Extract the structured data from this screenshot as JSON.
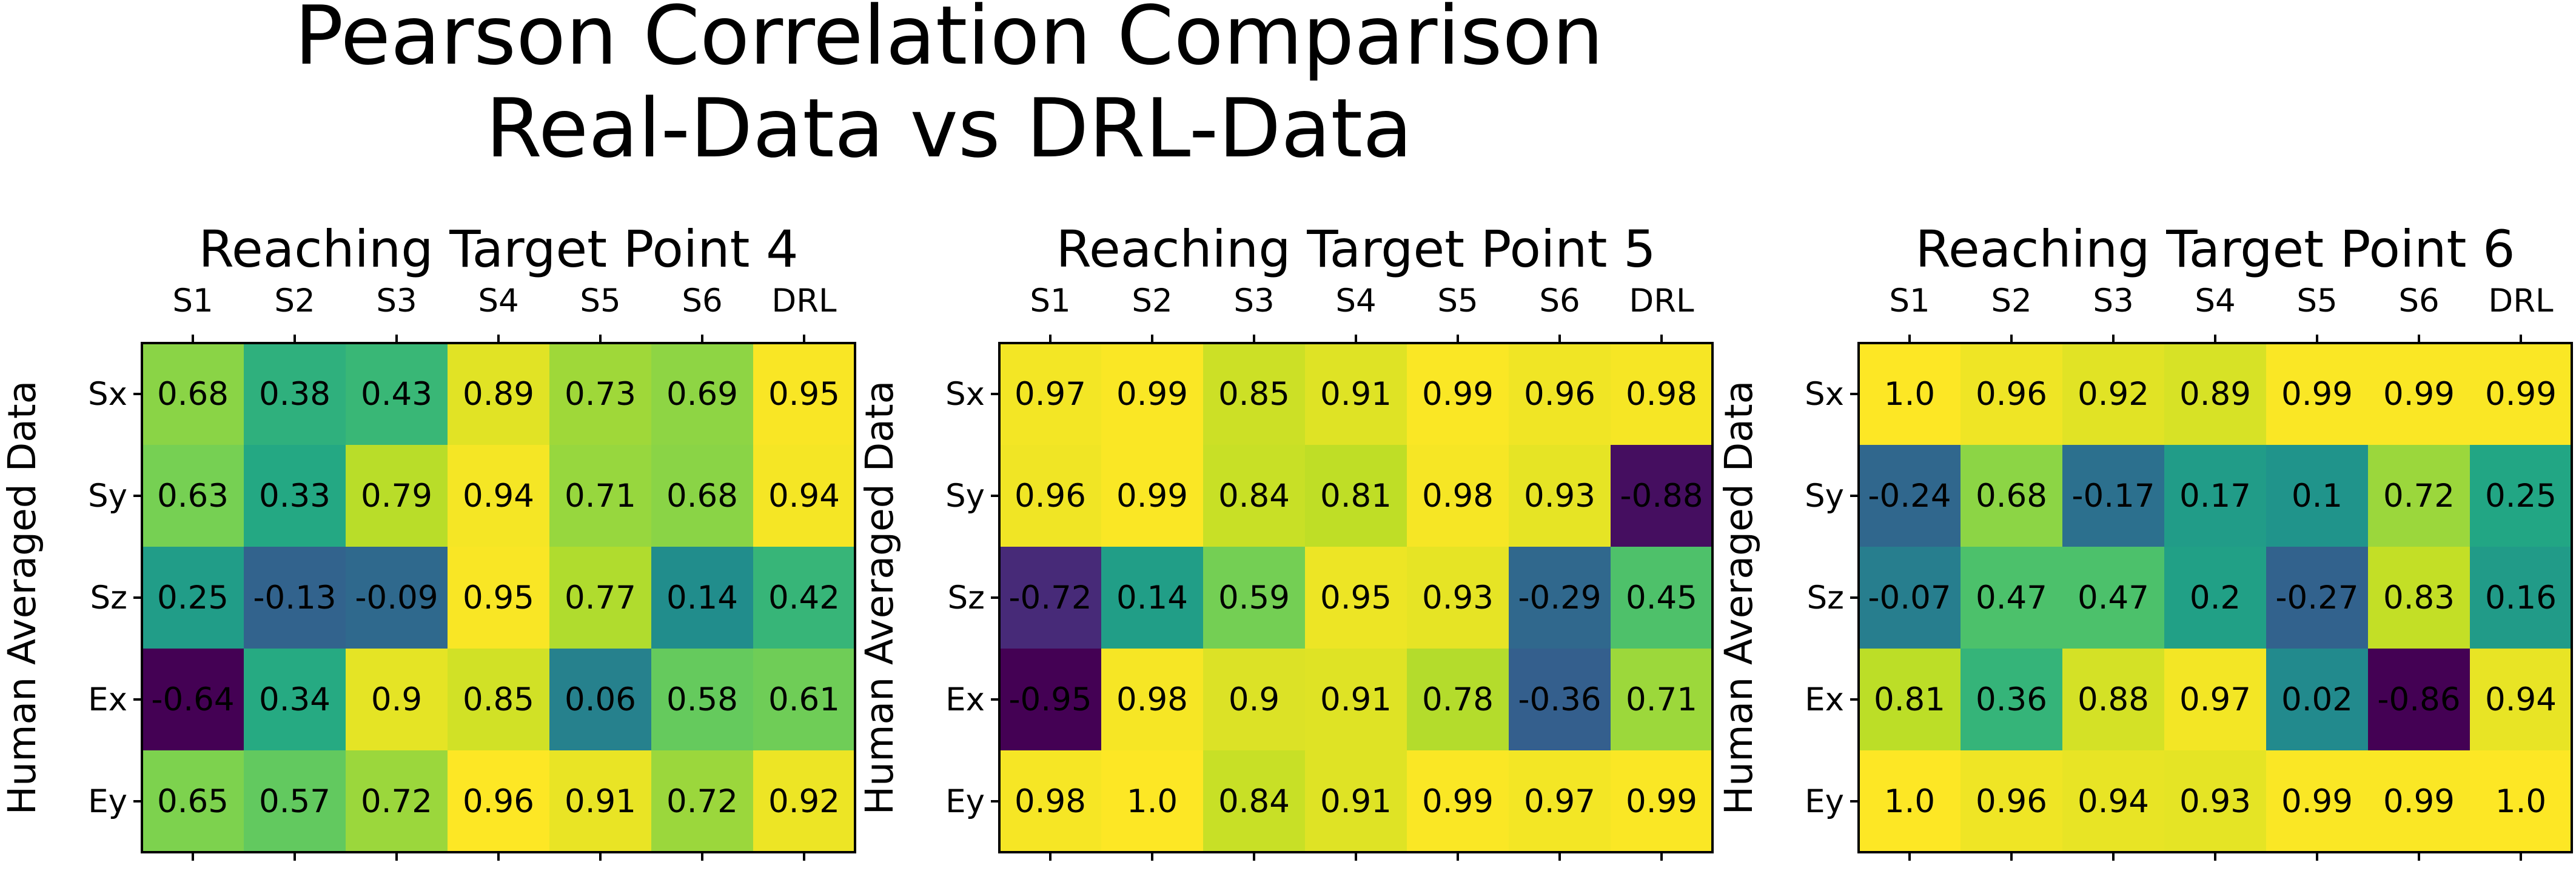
{
  "figure": {
    "title_line1": "Pearson Correlation Comparison",
    "title_line2": "Real-Data vs DRL-Data"
  },
  "chart_data": [
    {
      "type": "heatmap",
      "title": "Reaching Target Point 4",
      "xlabel": "",
      "ylabel": "Human Averaged Data",
      "columns": [
        "S1",
        "S2",
        "S3",
        "S4",
        "S5",
        "S6",
        "DRL"
      ],
      "rows": [
        "Sx",
        "Sy",
        "Sz",
        "Ex",
        "Ey"
      ],
      "values": [
        [
          "0.68",
          "0.38",
          "0.43",
          "0.89",
          "0.73",
          "0.69",
          "0.95"
        ],
        [
          "0.63",
          "0.33",
          "0.79",
          "0.94",
          "0.71",
          "0.68",
          "0.94"
        ],
        [
          "0.25",
          "-0.13",
          "-0.09",
          "0.95",
          "0.77",
          "0.14",
          "0.42"
        ],
        [
          "-0.64",
          "0.34",
          "0.9",
          "0.85",
          "0.06",
          "0.58",
          "0.61"
        ],
        [
          "0.65",
          "0.57",
          "0.72",
          "0.96",
          "0.91",
          "0.72",
          "0.92"
        ]
      ],
      "colormap": "viridis"
    },
    {
      "type": "heatmap",
      "title": "Reaching Target Point 5",
      "xlabel": "",
      "ylabel": "Human Averaged Data",
      "columns": [
        "S1",
        "S2",
        "S3",
        "S4",
        "S5",
        "S6",
        "DRL"
      ],
      "rows": [
        "Sx",
        "Sy",
        "Sz",
        "Ex",
        "Ey"
      ],
      "values": [
        [
          "0.97",
          "0.99",
          "0.85",
          "0.91",
          "0.99",
          "0.96",
          "0.98"
        ],
        [
          "0.96",
          "0.99",
          "0.84",
          "0.81",
          "0.98",
          "0.93",
          "-0.88"
        ],
        [
          "-0.72",
          "0.14",
          "0.59",
          "0.95",
          "0.93",
          "-0.29",
          "0.45"
        ],
        [
          "-0.95",
          "0.98",
          "0.9",
          "0.91",
          "0.78",
          "-0.36",
          "0.71"
        ],
        [
          "0.98",
          "1.0",
          "0.84",
          "0.91",
          "0.99",
          "0.97",
          "0.99"
        ]
      ],
      "colormap": "viridis"
    },
    {
      "type": "heatmap",
      "title": "Reaching Target Point 6",
      "xlabel": "",
      "ylabel": "Human Averaged Data",
      "columns": [
        "S1",
        "S2",
        "S3",
        "S4",
        "S5",
        "S6",
        "DRL"
      ],
      "rows": [
        "Sx",
        "Sy",
        "Sz",
        "Ex",
        "Ey"
      ],
      "values": [
        [
          "1.0",
          "0.96",
          "0.92",
          "0.89",
          "0.99",
          "0.99",
          "0.99"
        ],
        [
          "-0.24",
          "0.68",
          "-0.17",
          "0.17",
          "0.1",
          "0.72",
          "0.25"
        ],
        [
          "-0.07",
          "0.47",
          "0.47",
          "0.2",
          "-0.27",
          "0.83",
          "0.16"
        ],
        [
          "0.81",
          "0.36",
          "0.88",
          "0.97",
          "0.02",
          "-0.86",
          "0.94"
        ],
        [
          "1.0",
          "0.96",
          "0.94",
          "0.93",
          "0.99",
          "0.99",
          "1.0"
        ]
      ],
      "colormap": "viridis"
    }
  ]
}
